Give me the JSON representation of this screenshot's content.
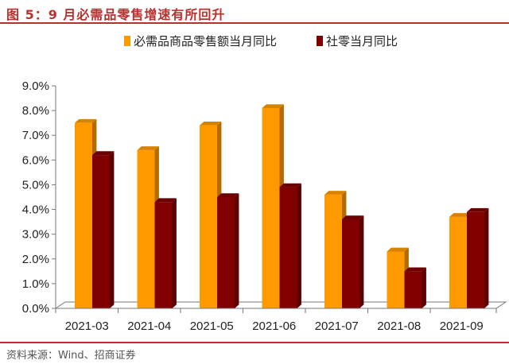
{
  "header": {
    "title": "图 5：9 月必需品零售增速有所回升"
  },
  "footer": {
    "source": "资料来源：Wind、招商证券"
  },
  "chart_data": {
    "type": "bar",
    "categories": [
      "2021-03",
      "2021-04",
      "2021-05",
      "2021-06",
      "2021-07",
      "2021-08",
      "2021-09"
    ],
    "series": [
      {
        "name": "必需品商品零售额当月同比",
        "color": "#ff9900",
        "values": [
          7.5,
          6.4,
          7.4,
          8.1,
          4.6,
          2.3,
          3.7
        ]
      },
      {
        "name": "社零当月同比",
        "color": "#800000",
        "values": [
          6.2,
          4.3,
          4.5,
          4.9,
          3.6,
          1.5,
          3.9
        ]
      }
    ],
    "yticks": [
      "0.0%",
      "1.0%",
      "2.0%",
      "3.0%",
      "4.0%",
      "5.0%",
      "6.0%",
      "7.0%",
      "8.0%",
      "9.0%"
    ],
    "ylim": [
      0,
      9
    ],
    "legend_position": "top",
    "grid": false,
    "style": "3d-bar"
  }
}
